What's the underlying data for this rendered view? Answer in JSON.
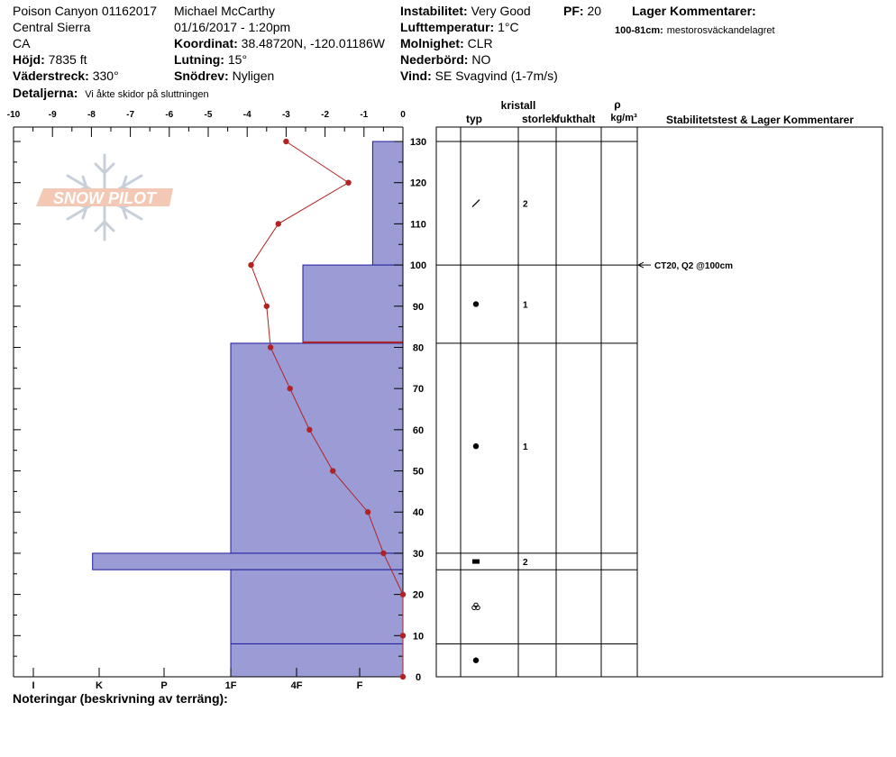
{
  "header": {
    "site_title": "Poison Canyon 01162017",
    "range": "Central Sierra",
    "state": "CA",
    "elevation_label": "Höjd:",
    "elevation": "7835 ft",
    "aspect_label": "Väderstreck:",
    "aspect": "330°",
    "detail_label": "Detaljerna:",
    "detail": "Vi åkte skidor på sluttningen",
    "observer": "Michael McCarthy",
    "datetime": "01/16/2017 - 1:20pm",
    "coord_label": "Koordinat:",
    "coord": "38.48720N, -120.01186W",
    "slope_label": "Lutning:",
    "slope": "15°",
    "drift_label": "Snödrev:",
    "drift": "Nyligen",
    "instability_label": "Instabilitet:",
    "instability": "Very Good",
    "airtemp_label": "Lufttemperatur:",
    "airtemp": "1°C",
    "clouds_label": "Molnighet:",
    "clouds": "CLR",
    "precip_label": "Nederbörd:",
    "precip": "NO",
    "wind_label": "Vind:",
    "wind": "SE Svagvind (1-7m/s)",
    "pf_label": "PF:",
    "pf": "20",
    "layer_comments_title": "Lager Kommentarer:",
    "layer_comment_range": "100-81cm:",
    "layer_comment_text": "mestorosväckandelagret"
  },
  "logo": {
    "text": "SNOW PILOT",
    "color": "#f3c9b5"
  },
  "footer": {
    "notes_label": "Noteringar (beskrivning av terräng):"
  },
  "columns": {
    "kristall": "kristall",
    "typ": "typ",
    "storlek": "storlek",
    "fukthalt": "fukthalt",
    "rho": "ρ",
    "density_unit": "kg/m³",
    "stability": "Stabilitetstest & Lager Kommentarer"
  },
  "colors": {
    "hardness_fill": "#9b9bd6",
    "hardness_stroke": "#1c1c9c",
    "temp_line": "#b22222",
    "weak_layer_line": "#b22222"
  },
  "chart_data": {
    "type": "snow-profile",
    "temperature_axis": {
      "ticks": [
        "-10",
        "-9",
        "-8",
        "-7",
        "-6",
        "-5",
        "-4",
        "-3",
        "-2",
        "-1",
        "0"
      ],
      "range": [
        -10,
        0
      ]
    },
    "height_axis": {
      "ticks": [
        "0",
        "10",
        "20",
        "30",
        "40",
        "50",
        "60",
        "70",
        "80",
        "90",
        "100",
        "110",
        "120",
        "130"
      ],
      "range": [
        0,
        130
      ]
    },
    "hardness_axis": {
      "ticks": [
        "I",
        "K",
        "P",
        "1F",
        "4F",
        "F"
      ]
    },
    "hardness_layers": [
      {
        "top": 130,
        "bottom": 100,
        "hardness_level": 0.67
      },
      {
        "top": 100,
        "bottom": 81,
        "hardness_level": 2.65
      },
      {
        "top": 81,
        "bottom": 30,
        "hardness_level": 4.3
      },
      {
        "top": 30,
        "bottom": 26,
        "hardness_level": 7.7
      },
      {
        "top": 26,
        "bottom": 8,
        "hardness_level": 4.3
      },
      {
        "top": 8,
        "bottom": 0,
        "hardness_level": 4.3
      }
    ],
    "weak_layer_depth": 81,
    "temperature_profile": [
      {
        "height": 130,
        "temp": -3.0
      },
      {
        "height": 120,
        "temp": -1.4
      },
      {
        "height": 110,
        "temp": -3.2
      },
      {
        "height": 100,
        "temp": -3.9
      },
      {
        "height": 90,
        "temp": -3.5
      },
      {
        "height": 80,
        "temp": -3.4
      },
      {
        "height": 70,
        "temp": -2.9
      },
      {
        "height": 60,
        "temp": -2.4
      },
      {
        "height": 50,
        "temp": -1.8
      },
      {
        "height": 40,
        "temp": -0.9
      },
      {
        "height": 30,
        "temp": -0.5
      },
      {
        "height": 20,
        "temp": 0.0
      },
      {
        "height": 10,
        "temp": 0.0
      },
      {
        "height": 0,
        "temp": 0.0
      }
    ],
    "layer_boundaries": [
      130,
      100,
      81,
      30,
      26,
      8,
      0
    ],
    "grain_rows": [
      {
        "height": 115,
        "grain": "decomposing-fragments",
        "size": "2"
      },
      {
        "height": 90.5,
        "grain": "rounded",
        "size": "1"
      },
      {
        "height": 56,
        "grain": "rounded",
        "size": "1"
      },
      {
        "height": 28,
        "grain": "faceted",
        "size": "2"
      },
      {
        "height": 17,
        "grain": "melt-forms",
        "size": ""
      },
      {
        "height": 4,
        "grain": "rounded",
        "size": ""
      }
    ],
    "stability_tests": [
      {
        "height": 100,
        "label": "CT20, Q2 @100cm"
      }
    ]
  }
}
